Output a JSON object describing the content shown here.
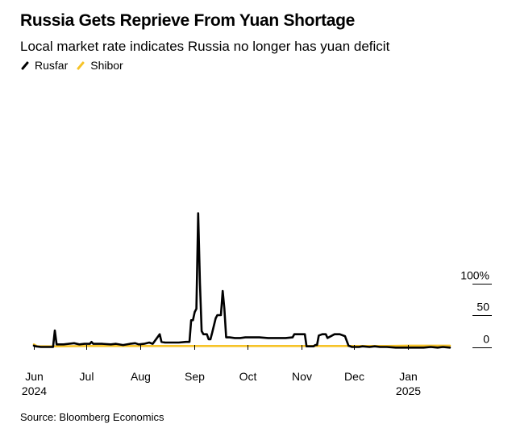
{
  "title": "Russia Gets Reprieve From Yuan Shortage",
  "subtitle": "Local market rate indicates Russia no longer has yuan deficit",
  "source": "Source: Bloomberg Economics",
  "colors": {
    "Rusfar": "#000000",
    "Shibor": "#f6c328",
    "gridline": "#000000"
  },
  "chart_data": {
    "type": "line",
    "title": "Russia Gets Reprieve From Yuan Shortage",
    "subtitle": "Local market rate indicates Russia no longer has yuan deficit",
    "ylabel": "",
    "xlabel": "",
    "y_unit": "%",
    "ylim": [
      -8,
      215
    ],
    "xlim": [
      "2024-06-01",
      "2025-01-25"
    ],
    "yticks": [
      {
        "value": 0,
        "label": "0"
      },
      {
        "value": 50,
        "label": "50"
      },
      {
        "value": 100,
        "label": "100%"
      }
    ],
    "xticks": [
      {
        "date": "2024-06-01",
        "label": "Jun",
        "year": "2024"
      },
      {
        "date": "2024-07-01",
        "label": "Jul",
        "year": ""
      },
      {
        "date": "2024-08-01",
        "label": "Aug",
        "year": ""
      },
      {
        "date": "2024-09-01",
        "label": "Sep",
        "year": ""
      },
      {
        "date": "2024-10-01",
        "label": "Oct",
        "year": ""
      },
      {
        "date": "2024-11-01",
        "label": "Nov",
        "year": ""
      },
      {
        "date": "2024-12-01",
        "label": "Dec",
        "year": ""
      },
      {
        "date": "2025-01-01",
        "label": "Jan",
        "year": "2025"
      }
    ],
    "grid": "horizontal at ticks",
    "legend": "top-left",
    "series": [
      {
        "name": "Rusfar",
        "color": "#000000",
        "points": [
          [
            "2024-06-01",
            2
          ],
          [
            "2024-06-02",
            1
          ],
          [
            "2024-06-05",
            0
          ],
          [
            "2024-06-08",
            0
          ],
          [
            "2024-06-12",
            0
          ],
          [
            "2024-06-13",
            26
          ],
          [
            "2024-06-14",
            4
          ],
          [
            "2024-06-18",
            4
          ],
          [
            "2024-06-21",
            5
          ],
          [
            "2024-06-24",
            6
          ],
          [
            "2024-06-27",
            4
          ],
          [
            "2024-06-30",
            5
          ],
          [
            "2024-07-03",
            5
          ],
          [
            "2024-07-04",
            8
          ],
          [
            "2024-07-05",
            5
          ],
          [
            "2024-07-10",
            5
          ],
          [
            "2024-07-15",
            4
          ],
          [
            "2024-07-18",
            5
          ],
          [
            "2024-07-22",
            3
          ],
          [
            "2024-07-26",
            5
          ],
          [
            "2024-07-29",
            6
          ],
          [
            "2024-07-31",
            4
          ],
          [
            "2024-08-03",
            5
          ],
          [
            "2024-08-06",
            7
          ],
          [
            "2024-08-08",
            5
          ],
          [
            "2024-08-12",
            20
          ],
          [
            "2024-08-13",
            8
          ],
          [
            "2024-08-15",
            7
          ],
          [
            "2024-08-19",
            7
          ],
          [
            "2024-08-23",
            7
          ],
          [
            "2024-08-27",
            8
          ],
          [
            "2024-08-29",
            8
          ],
          [
            "2024-08-30",
            42
          ],
          [
            "2024-08-31",
            42
          ],
          [
            "2024-09-01",
            55
          ],
          [
            "2024-09-02",
            60
          ],
          [
            "2024-09-03",
            210
          ],
          [
            "2024-09-04",
            100
          ],
          [
            "2024-09-05",
            25
          ],
          [
            "2024-09-06",
            20
          ],
          [
            "2024-09-08",
            20
          ],
          [
            "2024-09-09",
            12
          ],
          [
            "2024-09-10",
            12
          ],
          [
            "2024-09-11",
            22
          ],
          [
            "2024-09-13",
            45
          ],
          [
            "2024-09-14",
            50
          ],
          [
            "2024-09-16",
            50
          ],
          [
            "2024-09-17",
            88
          ],
          [
            "2024-09-18",
            60
          ],
          [
            "2024-09-19",
            15
          ],
          [
            "2024-09-21",
            15
          ],
          [
            "2024-09-24",
            14
          ],
          [
            "2024-09-27",
            14
          ],
          [
            "2024-09-30",
            15
          ],
          [
            "2024-10-03",
            15
          ],
          [
            "2024-10-08",
            15
          ],
          [
            "2024-10-13",
            14
          ],
          [
            "2024-10-18",
            14
          ],
          [
            "2024-10-23",
            14
          ],
          [
            "2024-10-27",
            15
          ],
          [
            "2024-10-28",
            20
          ],
          [
            "2024-11-03",
            20
          ],
          [
            "2024-11-04",
            1
          ],
          [
            "2024-11-08",
            1
          ],
          [
            "2024-11-09",
            3
          ],
          [
            "2024-11-10",
            3
          ],
          [
            "2024-11-11",
            18
          ],
          [
            "2024-11-13",
            20
          ],
          [
            "2024-11-15",
            20
          ],
          [
            "2024-11-16",
            14
          ],
          [
            "2024-11-20",
            20
          ],
          [
            "2024-11-23",
            20
          ],
          [
            "2024-11-26",
            17
          ],
          [
            "2024-11-28",
            2
          ],
          [
            "2024-11-30",
            0
          ],
          [
            "2024-12-04",
            0
          ],
          [
            "2024-12-06",
            1
          ],
          [
            "2024-12-10",
            0
          ],
          [
            "2024-12-13",
            1
          ],
          [
            "2024-12-16",
            0
          ],
          [
            "2024-12-20",
            0
          ],
          [
            "2024-12-25",
            -1
          ],
          [
            "2024-12-30",
            -1
          ],
          [
            "2025-01-05",
            -1
          ],
          [
            "2025-01-10",
            -1
          ],
          [
            "2025-01-14",
            0
          ],
          [
            "2025-01-18",
            -1
          ],
          [
            "2025-01-21",
            0
          ],
          [
            "2025-01-25",
            -1
          ]
        ]
      },
      {
        "name": "Shibor",
        "color": "#f6c328",
        "points": [
          [
            "2024-06-01",
            4
          ],
          [
            "2024-06-03",
            1
          ],
          [
            "2024-06-15",
            1
          ],
          [
            "2024-07-01",
            1.5
          ],
          [
            "2024-08-01",
            1.5
          ],
          [
            "2024-09-01",
            1.5
          ],
          [
            "2024-10-01",
            1.5
          ],
          [
            "2024-11-01",
            1.5
          ],
          [
            "2024-12-01",
            1.5
          ],
          [
            "2024-12-20",
            1.5
          ],
          [
            "2025-01-01",
            2
          ],
          [
            "2025-01-15",
            2
          ],
          [
            "2025-01-25",
            2
          ]
        ]
      }
    ]
  }
}
